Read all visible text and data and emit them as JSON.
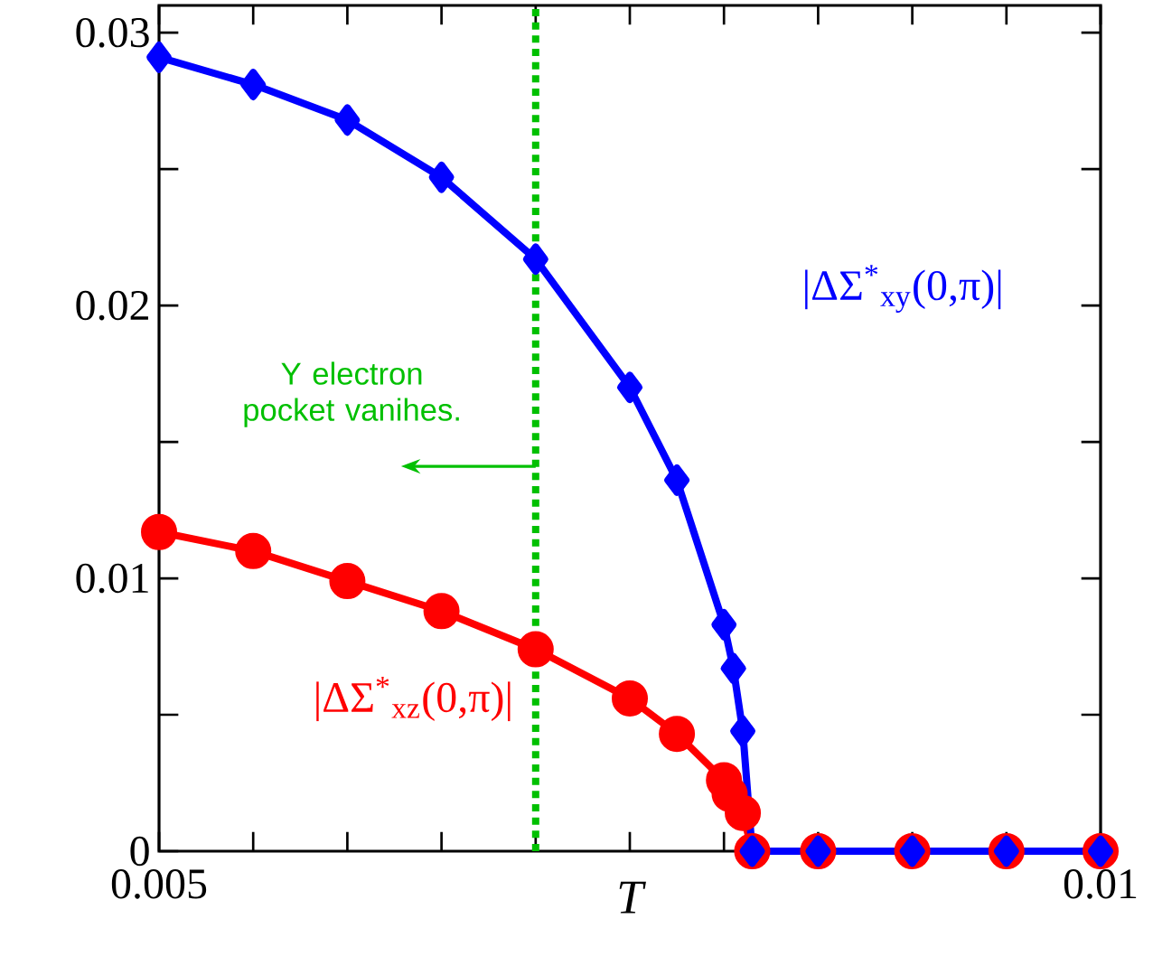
{
  "chart_data": {
    "type": "line",
    "xlabel": "T",
    "x": [
      0.005,
      0.0055,
      0.006,
      0.0065,
      0.007,
      0.0075,
      0.00775,
      0.008,
      0.00805,
      0.0081,
      0.00815,
      0.0085,
      0.009,
      0.0095,
      0.01
    ],
    "series": [
      {
        "name": "|ΔΣ$^{*}$$_{xz}$(0,π)|",
        "color": "#ff0000",
        "marker": "circle",
        "x": [
          0.005,
          0.0055,
          0.006,
          0.0065,
          0.007,
          0.0075,
          0.00775,
          0.008,
          0.00803,
          0.0081,
          0.00815,
          0.0085,
          0.009,
          0.0095,
          0.01
        ],
        "values": [
          0.0117,
          0.011,
          0.0099,
          0.0088,
          0.0074,
          0.0056,
          0.0043,
          0.0026,
          0.0021,
          0.0014,
          0,
          0,
          0,
          0,
          0
        ]
      },
      {
        "name": "|ΔΣ$^{*}$$_{xy}$(0,π)|",
        "color": "#0000ff",
        "marker": "diamond",
        "values": [
          0.0291,
          0.0281,
          0.0268,
          0.0247,
          0.0217,
          0.017,
          0.0136,
          0.0083,
          0.0067,
          0.0044,
          0,
          0,
          0,
          0,
          0
        ]
      }
    ],
    "xlim": [
      0.005,
      0.01
    ],
    "ylim": [
      0,
      0.031
    ],
    "xticks": [
      0.005,
      {
        "value": 0.0055,
        "label": null
      },
      {
        "value": 0.006,
        "label": null
      },
      {
        "value": 0.0065,
        "label": null
      },
      {
        "value": 0.007,
        "label": null
      },
      {
        "value": 0.0075,
        "label": null
      },
      {
        "value": 0.008,
        "label": null
      },
      {
        "value": 0.0085,
        "label": null
      },
      {
        "value": 0.009,
        "label": null
      },
      {
        "value": 0.0095,
        "label": null
      },
      0.01
    ],
    "yticks": [
      0,
      {
        "value": 0.005,
        "label": null
      },
      0.01,
      {
        "value": 0.015,
        "label": null
      },
      0.02,
      {
        "value": 0.025,
        "label": null
      },
      0.03
    ],
    "ref_lines": [
      {
        "axis": "x",
        "value": 0.007,
        "color": "#00c000",
        "line_style": "dotted"
      }
    ],
    "annotations": [
      "Y electron pocket vanihes."
    ],
    "line_style": "solid",
    "grid": false
  }
}
